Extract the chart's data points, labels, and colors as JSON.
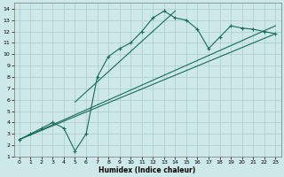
{
  "xlabel": "Humidex (Indice chaleur)",
  "ylabel": "",
  "xlim": [
    -0.5,
    23.5
  ],
  "ylim": [
    1,
    14.5
  ],
  "xticks": [
    0,
    1,
    2,
    3,
    4,
    5,
    6,
    7,
    8,
    9,
    10,
    11,
    12,
    13,
    14,
    15,
    16,
    17,
    18,
    19,
    20,
    21,
    22,
    23
  ],
  "yticks": [
    1,
    2,
    3,
    4,
    5,
    6,
    7,
    8,
    9,
    10,
    11,
    12,
    13,
    14
  ],
  "bg_color": "#cce8e8",
  "grid_color": "#aacccc",
  "line_color": "#1a6b5a",
  "curve_x": [
    0,
    1,
    2,
    3,
    4,
    5,
    6,
    7,
    8,
    9,
    10,
    11,
    12,
    13,
    14,
    15,
    16,
    17,
    18,
    19,
    20,
    21,
    22,
    23
  ],
  "curve_y": [
    2.5,
    3.0,
    3.5,
    4.0,
    3.5,
    1.5,
    3.0,
    8.0,
    9.8,
    10.5,
    11.0,
    12.0,
    13.2,
    13.8,
    13.2,
    13.0,
    12.2,
    10.5,
    11.5,
    12.5,
    12.3,
    12.2,
    12.0,
    11.8
  ],
  "line1_x": [
    0,
    23
  ],
  "line1_y": [
    2.5,
    11.8
  ],
  "line2_x": [
    0,
    23
  ],
  "line2_y": [
    2.5,
    12.5
  ],
  "line3_x": [
    5,
    14
  ],
  "line3_y": [
    5.8,
    13.8
  ]
}
